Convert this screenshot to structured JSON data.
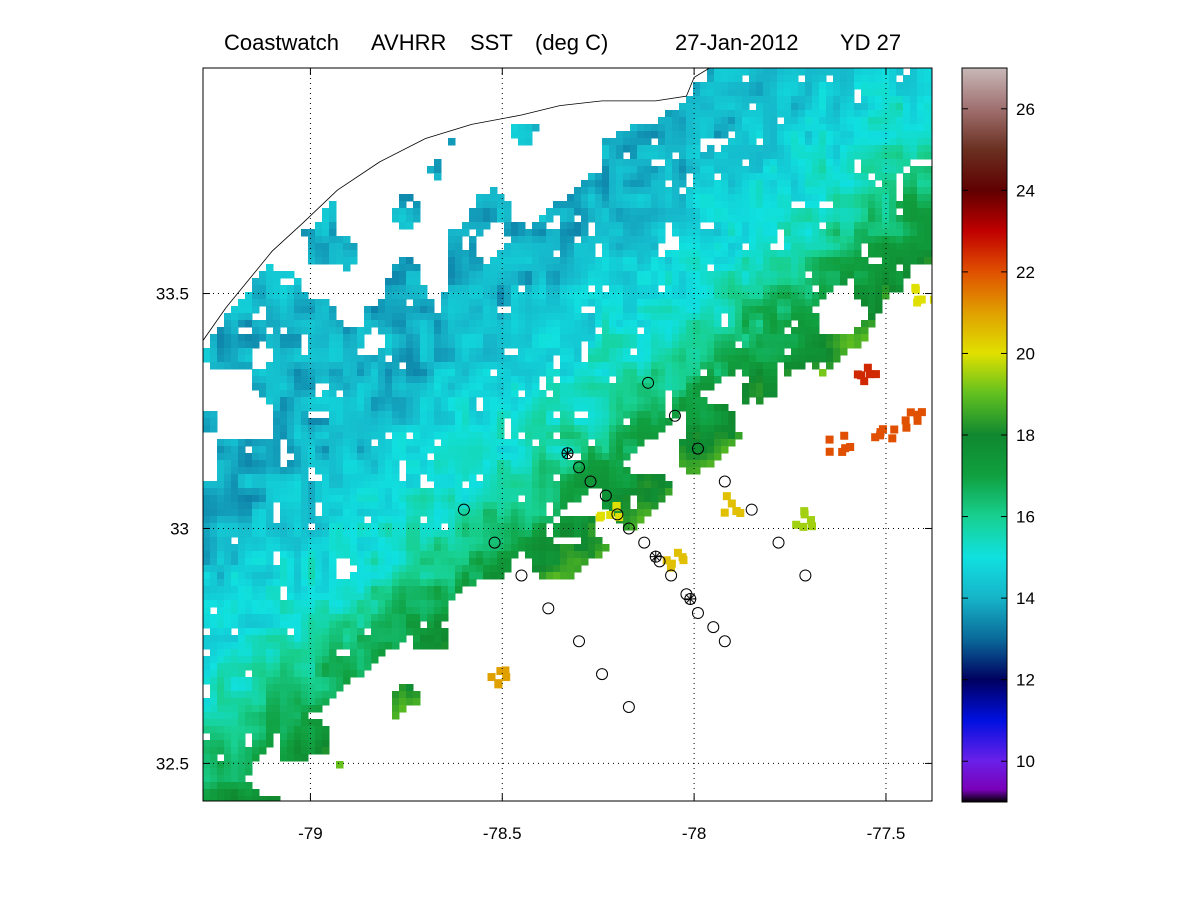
{
  "title": {
    "source": "Coastwatch",
    "sensor": "AVHRR",
    "variable": "SST",
    "units": "(deg C)",
    "date": "27-Jan-2012",
    "yearday": "YD 27"
  },
  "chart_data": {
    "type": "heatmap",
    "title": "Coastwatch AVHRR SST (deg C) 27-Jan-2012 YD 27",
    "xlabel": "",
    "ylabel": "",
    "xlim": [
      -79.28,
      -77.38
    ],
    "ylim": [
      32.42,
      33.98
    ],
    "x_ticks": [
      -79,
      -78.5,
      -78,
      -77.5
    ],
    "x_tick_labels": [
      "-79",
      "-78.5",
      "-78",
      "-77.5"
    ],
    "y_ticks": [
      32.5,
      33,
      33.5
    ],
    "y_tick_labels": [
      "32.5",
      "33",
      "33.5"
    ],
    "grid": "dotted",
    "colorbar": {
      "range": [
        9,
        27
      ],
      "ticks": [
        10,
        12,
        14,
        16,
        18,
        20,
        22,
        24,
        26
      ],
      "tick_labels": [
        "10",
        "12",
        "14",
        "16",
        "18",
        "20",
        "22",
        "24",
        "26"
      ],
      "colormap": [
        [
          9,
          "#000000"
        ],
        [
          9.3,
          "#7a00b8"
        ],
        [
          10,
          "#6a20e8"
        ],
        [
          11,
          "#0010e0"
        ],
        [
          12,
          "#000060"
        ],
        [
          13,
          "#0a6a9a"
        ],
        [
          14,
          "#16b4c8"
        ],
        [
          15,
          "#10e0e0"
        ],
        [
          16,
          "#18d090"
        ],
        [
          17,
          "#10a040"
        ],
        [
          18,
          "#108830"
        ],
        [
          19,
          "#60c020"
        ],
        [
          20,
          "#e0e000"
        ],
        [
          21,
          "#e0a000"
        ],
        [
          22,
          "#e05000"
        ],
        [
          23,
          "#c00000"
        ],
        [
          24,
          "#600000"
        ],
        [
          25,
          "#6a3020"
        ],
        [
          26,
          "#a07070"
        ],
        [
          27,
          "#c8b8b8"
        ]
      ]
    },
    "sst_gradient": {
      "cold_shelf": 14,
      "mid_shelf": 15.5,
      "shelf_break": 17.5,
      "outer": 19.5,
      "gulf_stream": 20.5
    },
    "warm_patches": [
      {
        "lon": -77.62,
        "lat": 33.18,
        "value": 22
      },
      {
        "lon": -77.5,
        "lat": 33.2,
        "value": 22
      },
      {
        "lon": -77.42,
        "lat": 33.23,
        "value": 22
      },
      {
        "lon": -77.55,
        "lat": 33.33,
        "value": 22.5
      },
      {
        "lon": -77.9,
        "lat": 33.05,
        "value": 20.5
      },
      {
        "lon": -78.05,
        "lat": 32.93,
        "value": 20.5
      },
      {
        "lon": -78.5,
        "lat": 32.68,
        "value": 21
      },
      {
        "lon": -78.22,
        "lat": 33.03,
        "value": 20
      },
      {
        "lon": -77.72,
        "lat": 33.02,
        "value": 19.5
      },
      {
        "lon": -77.4,
        "lat": 33.5,
        "value": 20
      }
    ],
    "stations_circle": [
      [
        -78.12,
        33.31
      ],
      [
        -78.05,
        33.24
      ],
      [
        -77.99,
        33.17
      ],
      [
        -78.33,
        33.16
      ],
      [
        -78.3,
        33.13
      ],
      [
        -78.27,
        33.1
      ],
      [
        -77.92,
        33.1
      ],
      [
        -78.23,
        33.07
      ],
      [
        -78.6,
        33.04
      ],
      [
        -78.2,
        33.03
      ],
      [
        -77.85,
        33.04
      ],
      [
        -78.17,
        33.0
      ],
      [
        -78.52,
        32.97
      ],
      [
        -78.13,
        32.97
      ],
      [
        -77.78,
        32.97
      ],
      [
        -78.1,
        32.94
      ],
      [
        -78.09,
        32.93
      ],
      [
        -78.45,
        32.9
      ],
      [
        -78.06,
        32.9
      ],
      [
        -77.71,
        32.9
      ],
      [
        -78.02,
        32.86
      ],
      [
        -78.01,
        32.85
      ],
      [
        -78.38,
        32.83
      ],
      [
        -77.99,
        32.82
      ],
      [
        -77.95,
        32.79
      ],
      [
        -78.3,
        32.76
      ],
      [
        -77.92,
        32.76
      ],
      [
        -78.24,
        32.69
      ],
      [
        -78.17,
        32.62
      ]
    ],
    "stations_star": [
      [
        -78.33,
        33.16
      ],
      [
        -78.1,
        32.94
      ],
      [
        -78.01,
        32.85
      ]
    ],
    "coastline": [
      [
        -79.28,
        33.4
      ],
      [
        -79.22,
        33.47
      ],
      [
        -79.17,
        33.52
      ],
      [
        -79.1,
        33.59
      ],
      [
        -79.02,
        33.65
      ],
      [
        -78.93,
        33.72
      ],
      [
        -78.82,
        33.78
      ],
      [
        -78.7,
        33.83
      ],
      [
        -78.58,
        33.86
      ],
      [
        -78.45,
        33.88
      ],
      [
        -78.35,
        33.9
      ],
      [
        -78.24,
        33.91
      ],
      [
        -78.1,
        33.91
      ],
      [
        -78.02,
        33.92
      ],
      [
        -78.0,
        33.96
      ],
      [
        -77.96,
        33.98
      ]
    ]
  }
}
